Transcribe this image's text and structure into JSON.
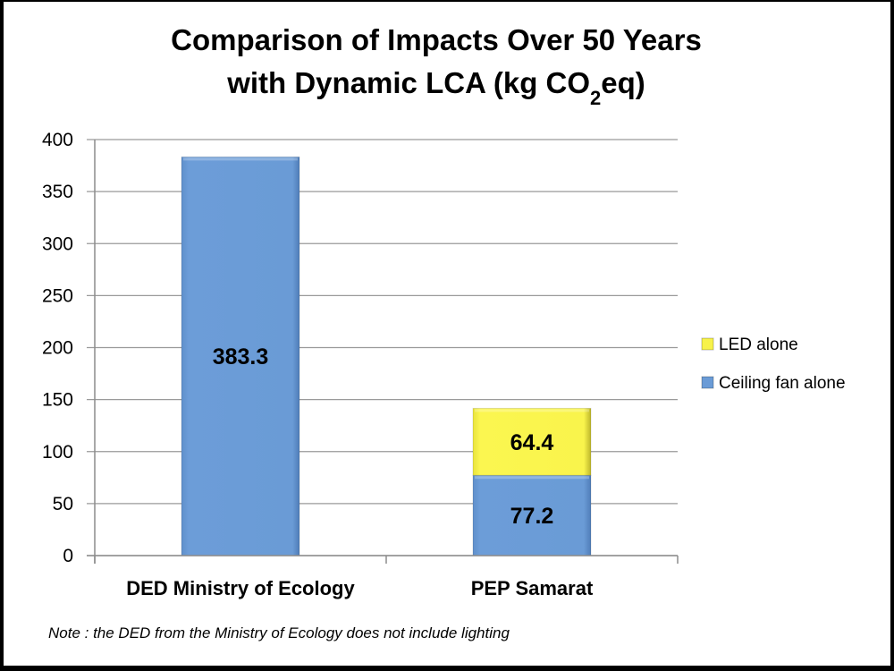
{
  "chart_data": {
    "type": "bar",
    "stacked": true,
    "title_lines": [
      "Comparison of Impacts Over 50 Years",
      "with Dynamic LCA (kg CO₂eq)"
    ],
    "title_line2_parts": {
      "before": "with Dynamic LCA (kg CO",
      "sub": "2",
      "after": "eq)"
    },
    "xlabel": "",
    "ylabel": "",
    "ylim": [
      0,
      400
    ],
    "yticks": [
      0,
      50,
      100,
      150,
      200,
      250,
      300,
      350,
      400
    ],
    "grid": true,
    "categories": [
      "DED Ministry of Ecology",
      "PEP Samarat"
    ],
    "series": [
      {
        "name": "Ceiling fan alone",
        "color": "#6a9bd6",
        "values": [
          383.3,
          77.2
        ],
        "labels": [
          "383.3",
          "77.2"
        ]
      },
      {
        "name": "LED alone",
        "color": "#f7f24a",
        "values": [
          0,
          64.4
        ],
        "labels": [
          "",
          "64.4"
        ]
      }
    ],
    "legend": {
      "placement": "right",
      "entries": [
        {
          "name": "LED alone",
          "color": "#f7f24a"
        },
        {
          "name": "Ceiling fan alone",
          "color": "#6a9bd6"
        }
      ]
    },
    "annotations": [
      "Note : the DED from the Ministry of Ecology does not include lighting"
    ]
  }
}
